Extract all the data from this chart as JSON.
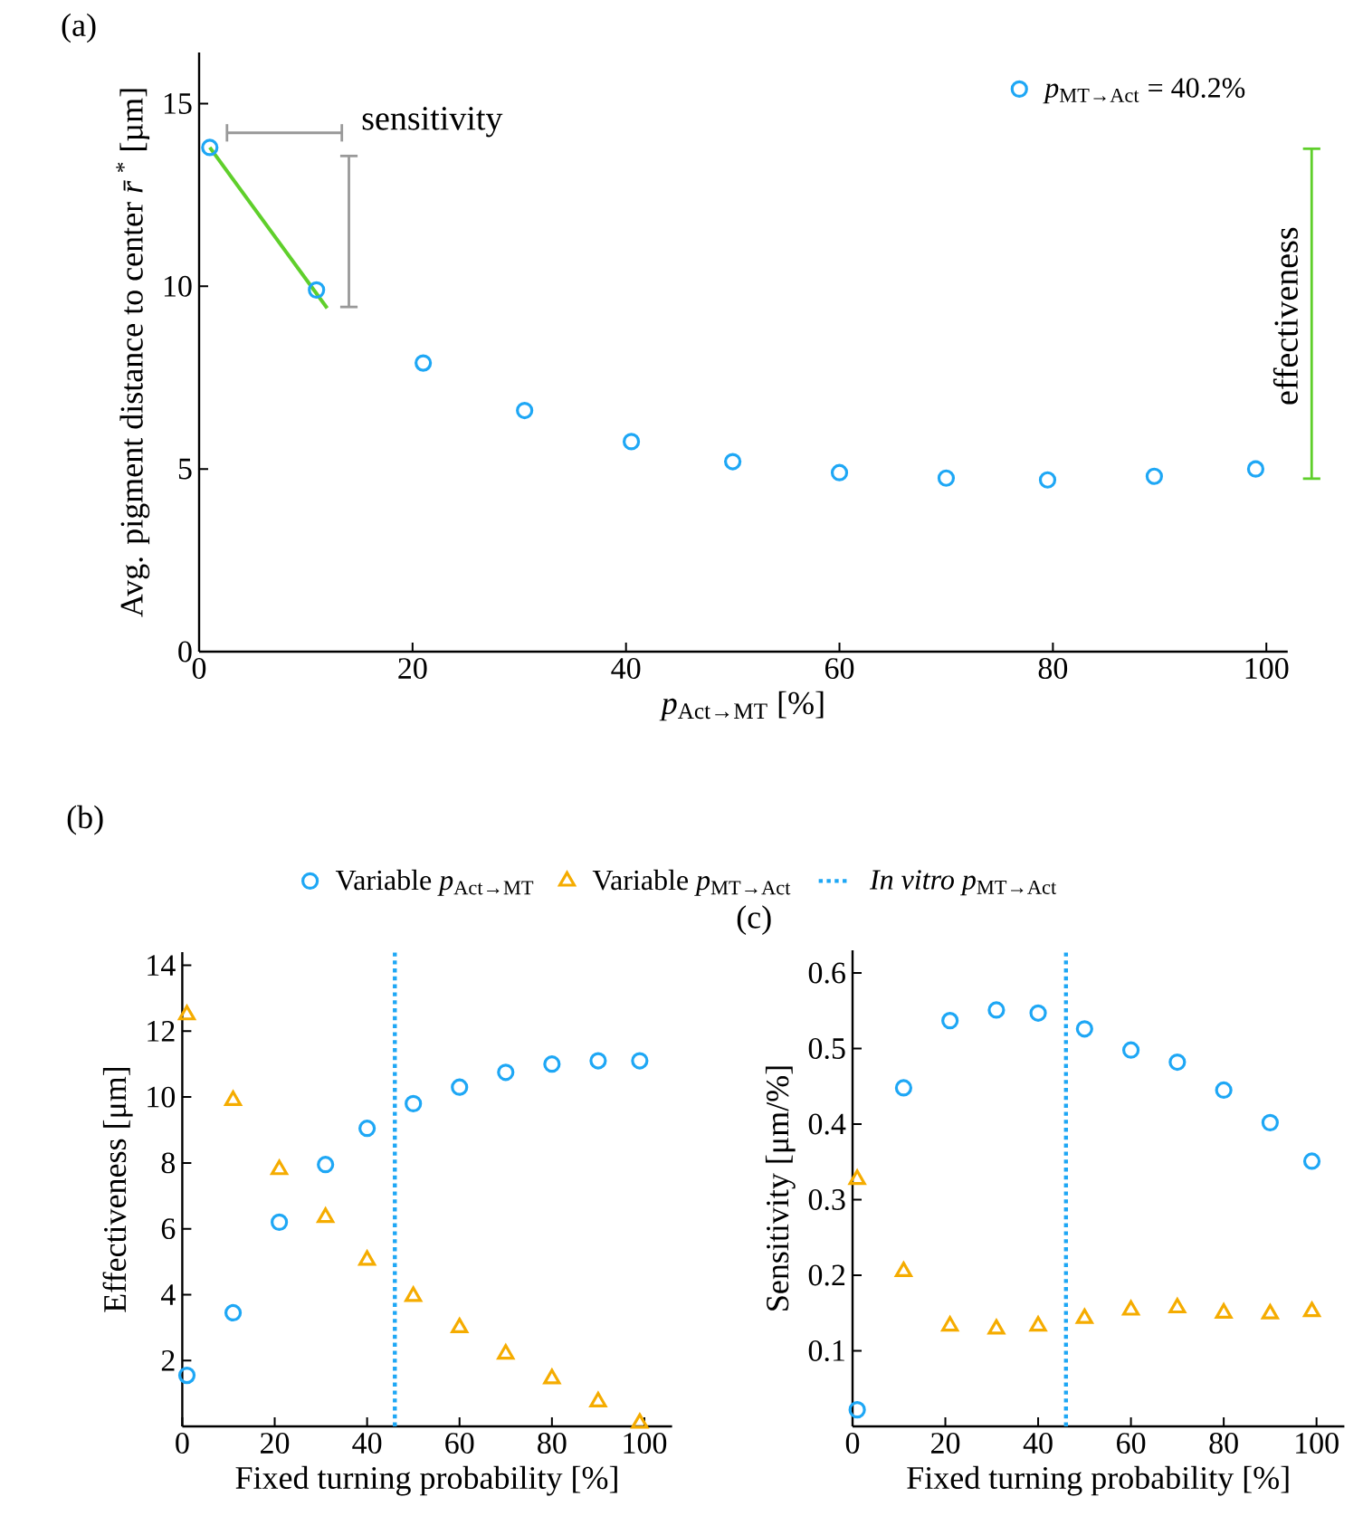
{
  "chart_data": [
    {
      "type": "scatter",
      "title": "(a)",
      "xlabel": "*p*$_{Act→MT}$ [%]",
      "ylabel": "Avg. pigment distance to center *r̄*$^{*}$ [µm]",
      "x": [
        1,
        11,
        21,
        30.5,
        40.5,
        50,
        60,
        70,
        79.5,
        89.5,
        99
      ],
      "series": [
        {
          "name": "*p*$_{MT→Act}$ = 40.2%",
          "color": "#1ea7f5",
          "marker": "circle",
          "values": [
            13.8,
            9.9,
            7.9,
            6.6,
            5.75,
            5.2,
            4.9,
            4.75,
            4.7,
            4.8,
            5.0
          ]
        },
        {
          "type": "line",
          "color": "#5fcf2b",
          "marker": "none",
          "x": [
            1,
            12
          ],
          "values": [
            13.8,
            9.4
          ]
        }
      ],
      "annotations": [
        "sensitivity",
        "effectiveness"
      ],
      "xlim": [
        0,
        102
      ],
      "ylim": [
        0,
        16.4
      ],
      "xticks": [
        0,
        20,
        40,
        60,
        80,
        100
      ],
      "yticks": [
        0,
        5,
        10,
        15
      ],
      "legend": "top right"
    },
    {
      "type": "scatter",
      "title": "(b)",
      "xlabel": "Fixed turning probability [%]",
      "ylabel": "Effectiveness [μm]",
      "x": [
        1,
        11,
        21,
        31,
        40,
        50,
        60,
        70,
        80,
        90,
        99
      ],
      "series": [
        {
          "name": "Variable *p*$_{Act→MT}$",
          "color": "#1ea7f5",
          "marker": "circle",
          "values": [
            1.55,
            3.45,
            6.2,
            7.95,
            9.05,
            9.8,
            10.3,
            10.75,
            11.0,
            11.1,
            11.1
          ]
        },
        {
          "name": "Variable *p*$_{MT→Act}$",
          "color": "#f5ac00",
          "marker": "triangle",
          "values": [
            12.5,
            9.9,
            7.8,
            6.35,
            5.05,
            3.95,
            3.0,
            2.2,
            1.45,
            0.75,
            0.1
          ]
        }
      ],
      "ref_lines": [
        {
          "axis": "x",
          "value": 46,
          "label": "*In vitro* *p*$_{MT→Act}$",
          "color": "#1ea7f5",
          "line_style": "dotted"
        }
      ],
      "xlim": [
        0,
        106
      ],
      "ylim": [
        0,
        14.4
      ],
      "xticks": [
        0,
        20,
        40,
        60,
        80,
        100
      ],
      "yticks": [
        2,
        4,
        6,
        8,
        10,
        12,
        14
      ],
      "legend": "top"
    },
    {
      "type": "scatter",
      "title": "(c)",
      "xlabel": "Fixed turning probability [%]",
      "ylabel": "Sensitivity [μm/%]",
      "x": [
        1,
        11,
        21,
        31,
        40,
        50,
        60,
        70,
        80,
        90,
        99
      ],
      "series": [
        {
          "color": "#1ea7f5",
          "marker": "circle",
          "values": [
            0.022,
            0.448,
            0.537,
            0.551,
            0.547,
            0.526,
            0.498,
            0.482,
            0.445,
            0.402,
            0.351
          ]
        },
        {
          "color": "#f5ac00",
          "marker": "triangle",
          "values": [
            0.327,
            0.205,
            0.133,
            0.129,
            0.133,
            0.143,
            0.154,
            0.157,
            0.15,
            0.149,
            0.152
          ]
        }
      ],
      "ref_lines": [
        {
          "axis": "x",
          "value": 46,
          "color": "#1ea7f5",
          "line_style": "dotted"
        }
      ],
      "xlim": [
        0,
        106
      ],
      "ylim": [
        0,
        0.63
      ],
      "xticks": [
        0,
        20,
        40,
        60,
        80,
        100
      ],
      "yticks": [
        0.1,
        0.2,
        0.3,
        0.4,
        0.5,
        0.6
      ]
    }
  ]
}
